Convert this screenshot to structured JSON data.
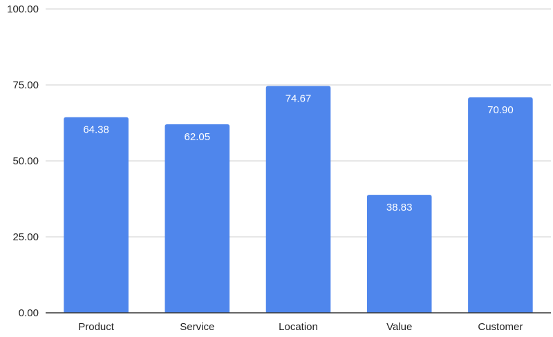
{
  "chart_data": {
    "type": "bar",
    "title": "",
    "xlabel": "",
    "ylabel": "",
    "categories": [
      "Product",
      "Service",
      "Location",
      "Value",
      "Customer"
    ],
    "values": [
      64.38,
      62.05,
      74.67,
      38.83,
      70.9
    ],
    "value_labels": [
      "64.38",
      "62.05",
      "74.67",
      "38.83",
      "70.90"
    ],
    "ylim": [
      0,
      100
    ],
    "yticks": [
      0,
      25,
      50,
      75,
      100
    ],
    "ytick_labels": [
      "0.00",
      "25.00",
      "50.00",
      "75.00",
      "100.00"
    ],
    "grid": true,
    "legend": "none",
    "bar_color": "#4f86ec"
  }
}
